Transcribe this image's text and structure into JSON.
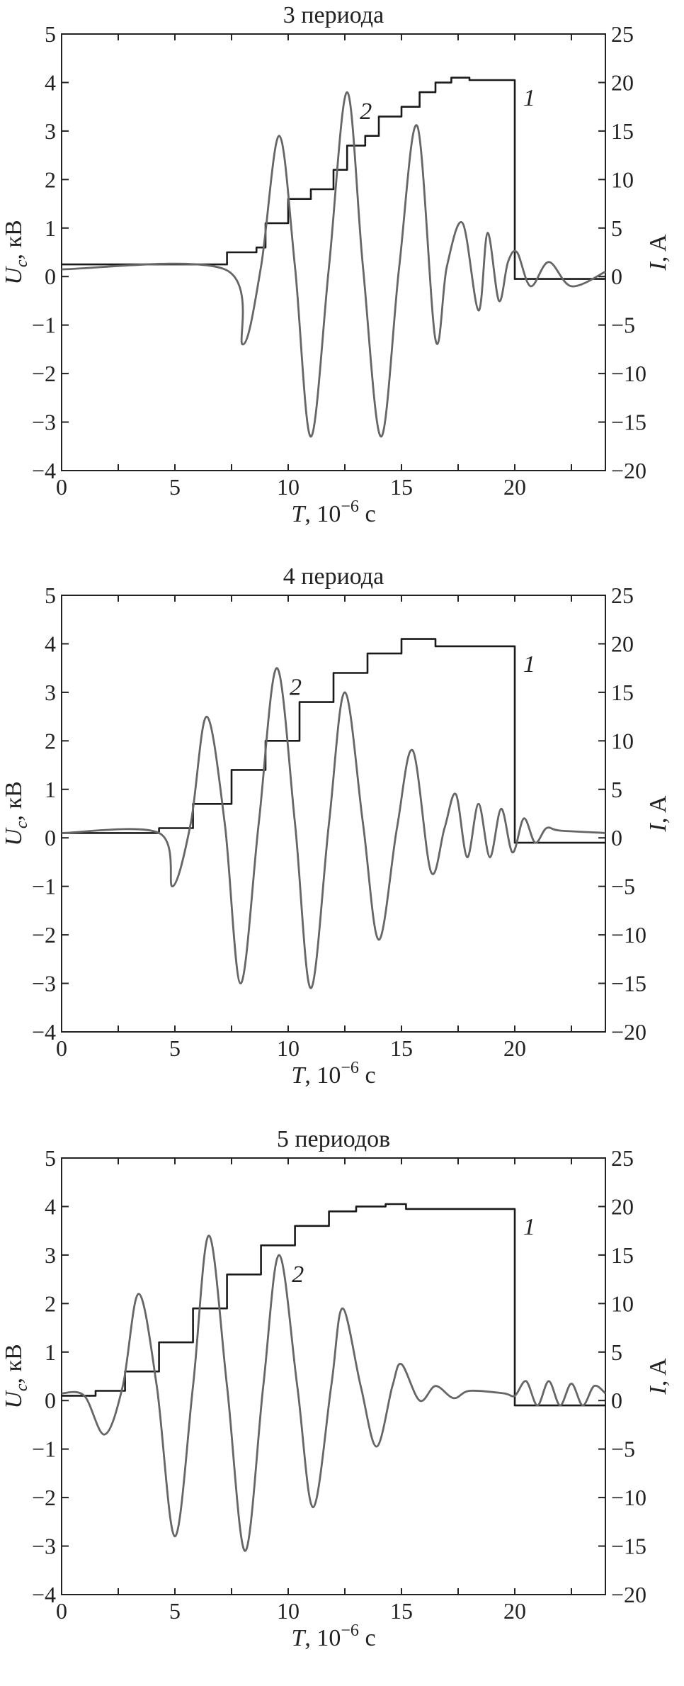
{
  "colors": {
    "series_1": "#1a1a1a",
    "series_2": "#666666",
    "frame": "#222222"
  },
  "chart_data": [
    {
      "type": "line",
      "title": "3 периода",
      "xlabel_main": "T",
      "xlabel_unit": ", 10",
      "xlabel_exp": "−6",
      "xlabel_tail": " с",
      "ylabel_left_main": "U",
      "ylabel_left_sub": "c",
      "ylabel_left_tail": ", кВ",
      "ylabel_right": "I, A",
      "xlim": [
        0,
        24
      ],
      "ylim_left": [
        -4,
        5
      ],
      "ylim_right": [
        -20,
        25
      ],
      "xticks": [
        "0",
        "5",
        "10",
        "15",
        "20"
      ],
      "yticks_left": [
        "5",
        "4",
        "3",
        "2",
        "1",
        "0",
        "−1",
        "−2",
        "−3",
        "−4"
      ],
      "yticks_right": [
        "25",
        "20",
        "15",
        "10",
        "5",
        "0",
        "−5",
        "−10",
        "−15",
        "−20"
      ],
      "grid": false,
      "series": [
        {
          "name": "1",
          "axis": "left",
          "step": true,
          "x": [
            0,
            7.3,
            7.3,
            8.6,
            8.6,
            9.0,
            9.0,
            10.0,
            10.0,
            11.0,
            11.0,
            12.0,
            12.0,
            12.6,
            12.6,
            13.4,
            13.4,
            14.0,
            14.0,
            15.0,
            15.0,
            15.8,
            15.8,
            16.5,
            16.5,
            17.2,
            17.2,
            18.0,
            18.0,
            20.0,
            20.0,
            24
          ],
          "y": [
            0.25,
            0.25,
            0.5,
            0.5,
            0.6,
            0.6,
            1.1,
            1.1,
            1.6,
            1.6,
            1.8,
            1.8,
            2.2,
            2.2,
            2.7,
            2.7,
            2.9,
            2.9,
            3.3,
            3.3,
            3.5,
            3.5,
            3.8,
            3.8,
            4.0,
            4.0,
            4.1,
            4.1,
            4.05,
            4.05,
            -0.05,
            -0.05
          ]
        },
        {
          "name": "2",
          "axis": "left",
          "x": [
            0,
            7.2,
            8.0,
            8.8,
            9.6,
            10.3,
            11.0,
            11.8,
            12.6,
            13.3,
            14.1,
            14.9,
            15.7,
            16.5,
            17.0,
            17.7,
            18.4,
            18.8,
            19.3,
            19.7,
            20.1,
            20.7,
            21.5,
            22.5,
            24
          ],
          "y": [
            0.15,
            0.15,
            -1.4,
            0.2,
            2.9,
            0.2,
            -3.3,
            0.2,
            3.8,
            0.2,
            -3.3,
            0.2,
            3.1,
            -1.3,
            0.2,
            1.1,
            -0.7,
            0.9,
            -0.5,
            0.3,
            0.5,
            -0.2,
            0.3,
            -0.2,
            0.1
          ]
        }
      ]
    },
    {
      "type": "line",
      "title": "4 периода",
      "xlabel_main": "T",
      "xlabel_unit": ", 10",
      "xlabel_exp": "−6",
      "xlabel_tail": " с",
      "ylabel_left_main": "U",
      "ylabel_left_sub": "c",
      "ylabel_left_tail": ", кВ",
      "ylabel_right": "I, A",
      "xlim": [
        0,
        24
      ],
      "ylim_left": [
        -4,
        5
      ],
      "ylim_right": [
        -20,
        25
      ],
      "xticks": [
        "0",
        "5",
        "10",
        "15",
        "20"
      ],
      "yticks_left": [
        "5",
        "4",
        "3",
        "2",
        "1",
        "0",
        "−1",
        "−2",
        "−3",
        "−4"
      ],
      "yticks_right": [
        "25",
        "20",
        "15",
        "10",
        "5",
        "0",
        "−5",
        "−10",
        "−15",
        "−20"
      ],
      "grid": false,
      "series": [
        {
          "name": "1",
          "axis": "left",
          "step": true,
          "x": [
            0,
            4.3,
            4.3,
            5.8,
            5.8,
            7.5,
            7.5,
            9.0,
            9.0,
            10.5,
            10.5,
            12.0,
            12.0,
            13.5,
            13.5,
            15.0,
            15.0,
            16.5,
            16.5,
            20.0,
            20.0,
            24
          ],
          "y": [
            0.1,
            0.1,
            0.2,
            0.2,
            0.7,
            0.7,
            1.4,
            1.4,
            2.0,
            2.0,
            2.8,
            2.8,
            3.4,
            3.4,
            3.8,
            3.8,
            4.1,
            4.1,
            3.95,
            3.95,
            -0.1,
            -0.1
          ]
        },
        {
          "name": "2",
          "axis": "left",
          "x": [
            0,
            4.3,
            4.9,
            5.7,
            6.4,
            7.2,
            7.9,
            8.7,
            9.5,
            10.3,
            11.0,
            11.8,
            12.5,
            13.3,
            14.0,
            14.8,
            15.5,
            16.3,
            16.9,
            17.4,
            17.9,
            18.4,
            18.9,
            19.4,
            19.9,
            20.4,
            20.9,
            21.4,
            22.0,
            24
          ],
          "y": [
            0.1,
            0.1,
            -1.0,
            0.3,
            2.5,
            0.3,
            -3.0,
            0.3,
            3.5,
            0.3,
            -3.1,
            0.3,
            3.0,
            0.3,
            -2.1,
            0.2,
            1.8,
            -0.7,
            0.2,
            0.9,
            -0.4,
            0.7,
            -0.4,
            0.6,
            -0.3,
            0.4,
            -0.1,
            0.2,
            0.15,
            0.1
          ]
        }
      ]
    },
    {
      "type": "line",
      "title": "5 периодов",
      "xlabel_main": "T",
      "xlabel_unit": ", 10",
      "xlabel_exp": "−6",
      "xlabel_tail": " с",
      "ylabel_left_main": "U",
      "ylabel_left_sub": "c",
      "ylabel_left_tail": ", кВ",
      "ylabel_right": "I, A",
      "xlim": [
        0,
        24
      ],
      "ylim_left": [
        -4,
        5
      ],
      "ylim_right": [
        -20,
        25
      ],
      "xticks": [
        "0",
        "5",
        "10",
        "15",
        "20"
      ],
      "yticks_left": [
        "5",
        "4",
        "3",
        "2",
        "1",
        "0",
        "−1",
        "−2",
        "−3",
        "−4"
      ],
      "yticks_right": [
        "25",
        "20",
        "15",
        "10",
        "5",
        "0",
        "−5",
        "−10",
        "−15",
        "−20"
      ],
      "grid": false,
      "series": [
        {
          "name": "1",
          "axis": "left",
          "step": true,
          "x": [
            0,
            1.5,
            1.5,
            2.8,
            2.8,
            4.3,
            4.3,
            5.8,
            5.8,
            7.3,
            7.3,
            8.8,
            8.8,
            10.3,
            10.3,
            11.8,
            11.8,
            13.0,
            13.0,
            14.3,
            14.3,
            15.2,
            15.2,
            20.0,
            20.0,
            24
          ],
          "y": [
            0.1,
            0.1,
            0.2,
            0.2,
            0.6,
            0.6,
            1.2,
            1.2,
            1.9,
            1.9,
            2.6,
            2.6,
            3.2,
            3.2,
            3.6,
            3.6,
            3.9,
            3.9,
            4.0,
            4.0,
            4.05,
            4.05,
            3.95,
            3.95,
            -0.1,
            -0.1
          ]
        },
        {
          "name": "2",
          "axis": "left",
          "x": [
            0,
            1.0,
            1.9,
            2.7,
            3.4,
            4.2,
            5.0,
            5.8,
            6.5,
            7.3,
            8.1,
            8.9,
            9.6,
            10.4,
            11.1,
            11.9,
            12.4,
            13.2,
            13.9,
            14.6,
            15.0,
            15.8,
            16.5,
            17.3,
            18.0,
            19.5,
            20.0,
            20.5,
            21.0,
            21.5,
            22.0,
            22.5,
            23.0,
            23.5,
            24
          ],
          "y": [
            0.15,
            0.1,
            -0.7,
            0.3,
            2.2,
            0.3,
            -2.8,
            0.3,
            3.4,
            0.3,
            -3.1,
            0.3,
            3.0,
            0.3,
            -2.2,
            0.3,
            1.9,
            0.3,
            -0.95,
            0.3,
            0.75,
            0.0,
            0.3,
            0.05,
            0.2,
            0.15,
            0.1,
            0.4,
            -0.1,
            0.4,
            -0.1,
            0.35,
            -0.1,
            0.3,
            0.15
          ]
        }
      ]
    }
  ]
}
